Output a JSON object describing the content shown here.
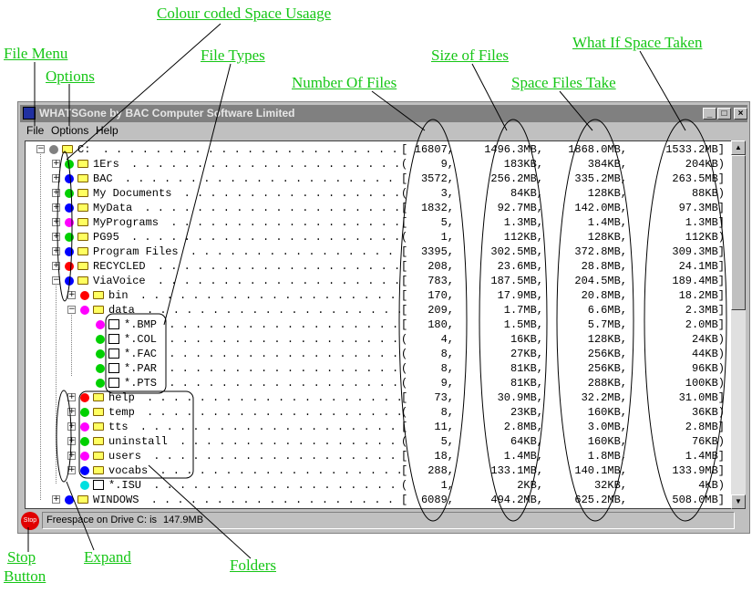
{
  "callouts": {
    "colour_coded": "Colour coded Space Usaage",
    "file_menu": "File Menu",
    "options": "Options",
    "file_types": "File Types",
    "number_of_files": "Number Of Files",
    "size_of_files": "Size of Files",
    "what_if": "What If Space Taken",
    "space_files_take": "Space Files Take",
    "stop_button_1": "Stop",
    "stop_button_2": "Button",
    "expand": "Expand",
    "folders": "Folders"
  },
  "window": {
    "title": "WHATSGone by BAC Computer Software Limited",
    "minimize_glyph": "_",
    "maximize_glyph": "□",
    "close_glyph": "×"
  },
  "menu": {
    "file": "File",
    "options": "Options",
    "help": "Help"
  },
  "tree": {
    "rows": [
      {
        "name": "C:",
        "count": "[16807",
        "size": "1496.3MB",
        "space": "1868.0MB",
        "whatif": "1533.2MB]",
        "color": "#808080",
        "icon": "folder",
        "indent": 0,
        "expander": "−"
      },
      {
        "name": "1Ers",
        "count": "( 9",
        "size": "183KB",
        "space": "384KB",
        "whatif": "204KB)",
        "color": "#00d000",
        "icon": "folder",
        "indent": 1,
        "expander": "+"
      },
      {
        "name": "BAC",
        "count": "[ 3572",
        "size": "256.2MB",
        "space": "335.2MB",
        "whatif": "263.5MB]",
        "color": "#0000ff",
        "icon": "folder",
        "indent": 1,
        "expander": "+"
      },
      {
        "name": "My Documents",
        "count": "( 3",
        "size": "84KB",
        "space": "128KB",
        "whatif": "88KB)",
        "color": "#00d000",
        "icon": "folder",
        "indent": 1,
        "expander": "+"
      },
      {
        "name": "MyData",
        "count": "[ 1832",
        "size": "92.7MB",
        "space": "142.0MB",
        "whatif": "97.3MB]",
        "color": "#0000ff",
        "icon": "folder",
        "indent": 1,
        "expander": "+"
      },
      {
        "name": "MyPrograms",
        "count": "[ 5",
        "size": "1.3MB",
        "space": "1.4MB",
        "whatif": "1.3MB]",
        "color": "#ff00ff",
        "icon": "folder",
        "indent": 1,
        "expander": "+"
      },
      {
        "name": "PG95",
        "count": "( 1",
        "size": "112KB",
        "space": "128KB",
        "whatif": "112KB)",
        "color": "#00d000",
        "icon": "folder",
        "indent": 1,
        "expander": "+"
      },
      {
        "name": "Program Files",
        "count": "[ 3395",
        "size": "302.5MB",
        "space": "372.8MB",
        "whatif": "309.3MB]",
        "color": "#0000ff",
        "icon": "folder",
        "indent": 1,
        "expander": "+"
      },
      {
        "name": "RECYCLED",
        "count": "[ 208",
        "size": "23.6MB",
        "space": "28.8MB",
        "whatif": "24.1MB]",
        "color": "#ff0000",
        "icon": "folder",
        "indent": 1,
        "expander": "+"
      },
      {
        "name": "ViaVoice",
        "count": "[ 783",
        "size": "187.5MB",
        "space": "204.5MB",
        "whatif": "189.4MB]",
        "color": "#0000ff",
        "icon": "folder",
        "indent": 1,
        "expander": "−"
      },
      {
        "name": "bin",
        "count": "[ 170",
        "size": "17.9MB",
        "space": "20.8MB",
        "whatif": "18.2MB]",
        "color": "#ff0000",
        "icon": "folder",
        "indent": 2,
        "expander": "+"
      },
      {
        "name": "data",
        "count": "[ 209",
        "size": "1.7MB",
        "space": "6.6MB",
        "whatif": "2.3MB]",
        "color": "#ff00ff",
        "icon": "folder",
        "indent": 2,
        "expander": "−"
      },
      {
        "name": "*.BMP",
        "count": "[ 180",
        "size": "1.5MB",
        "space": "5.7MB",
        "whatif": "2.0MB]",
        "color": "#ff00ff",
        "icon": "file",
        "indent": 3,
        "expander": ""
      },
      {
        "name": "*.COL",
        "count": "( 4",
        "size": "16KB",
        "space": "128KB",
        "whatif": "24KB)",
        "color": "#00d000",
        "icon": "file",
        "indent": 3,
        "expander": ""
      },
      {
        "name": "*.FAC",
        "count": "( 8",
        "size": "27KB",
        "space": "256KB",
        "whatif": "44KB)",
        "color": "#00d000",
        "icon": "file",
        "indent": 3,
        "expander": ""
      },
      {
        "name": "*.PAR",
        "count": "( 8",
        "size": "81KB",
        "space": "256KB",
        "whatif": "96KB)",
        "color": "#00d000",
        "icon": "file",
        "indent": 3,
        "expander": ""
      },
      {
        "name": "*.PTS",
        "count": "( 9",
        "size": "81KB",
        "space": "288KB",
        "whatif": "100KB)",
        "color": "#00d000",
        "icon": "file",
        "indent": 3,
        "expander": ""
      },
      {
        "name": "help",
        "count": "[ 73",
        "size": "30.9MB",
        "space": "32.2MB",
        "whatif": "31.0MB]",
        "color": "#ff0000",
        "icon": "folder",
        "indent": 2,
        "expander": "+"
      },
      {
        "name": "temp",
        "count": "( 8",
        "size": "23KB",
        "space": "160KB",
        "whatif": "36KB)",
        "color": "#00d000",
        "icon": "folder",
        "indent": 2,
        "expander": "+"
      },
      {
        "name": "tts",
        "count": "[ 11",
        "size": "2.8MB",
        "space": "3.0MB",
        "whatif": "2.8MB]",
        "color": "#ff00ff",
        "icon": "folder",
        "indent": 2,
        "expander": "+"
      },
      {
        "name": "uninstall",
        "count": "( 5",
        "size": "64KB",
        "space": "160KB",
        "whatif": "76KB)",
        "color": "#00d000",
        "icon": "folder",
        "indent": 2,
        "expander": "+"
      },
      {
        "name": "users",
        "count": "[ 18",
        "size": "1.4MB",
        "space": "1.8MB",
        "whatif": "1.4MB]",
        "color": "#ff00ff",
        "icon": "folder",
        "indent": 2,
        "expander": "+"
      },
      {
        "name": "vocabs",
        "count": "[ 288",
        "size": "133.1MB",
        "space": "140.1MB",
        "whatif": "133.9MB]",
        "color": "#0000ff",
        "icon": "folder",
        "indent": 2,
        "expander": "+"
      },
      {
        "name": "*.ISU",
        "count": "( 1",
        "size": "2KB",
        "space": "32KB",
        "whatif": "4KB)",
        "color": "#00e0e0",
        "icon": "file",
        "indent": 2,
        "expander": ""
      },
      {
        "name": "WINDOWS",
        "count": "[ 6089",
        "size": "494.2MB",
        "space": "625.2MB",
        "whatif": "508.0MB]",
        "color": "#0000ff",
        "icon": "folder",
        "indent": 1,
        "expander": "+"
      }
    ]
  },
  "status": {
    "stop_label": "Stop",
    "freespace_label": "Freespace on Drive C: is",
    "freespace_value": "147.9MB"
  },
  "scrollbar": {
    "up_glyph": "▲",
    "down_glyph": "▼"
  }
}
